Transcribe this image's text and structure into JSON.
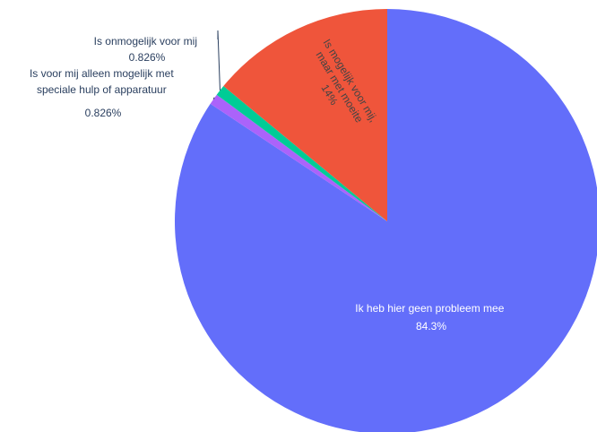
{
  "chart_data": {
    "type": "pie",
    "slices": [
      {
        "label": "Ik heb hier geen probleem mee",
        "value": 84.3,
        "percent_text": "84.3%",
        "color": "#636efa"
      },
      {
        "label": "Is voor mij alleen mogelijk met speciale hulp of apparatuur",
        "value": 0.826,
        "percent_text": "0.826%",
        "color": "#ab63fa"
      },
      {
        "label": "Is onmogelijk voor mij",
        "value": 0.826,
        "percent_text": "0.826%",
        "color": "#00cc96"
      },
      {
        "label": "Is mogelijk voor mij, maar met moeite",
        "value": 14,
        "percent_text": "14%",
        "color": "#ef553b"
      }
    ],
    "labels_display": {
      "slice0": [
        "Ik heb hier geen probleem mee",
        "84.3%"
      ],
      "slice1": [
        "Is voor mij alleen mogelijk met",
        "speciale hulp of apparatuur",
        "0.826%"
      ],
      "slice2": [
        "Is onmogelijk voor mij",
        "0.826%"
      ],
      "slice3": [
        "Is mogelijk voor mij,",
        "maar met moeite",
        "14%"
      ]
    },
    "start_angle": "12 o'clock",
    "direction": "clockwise",
    "legend": "none"
  }
}
